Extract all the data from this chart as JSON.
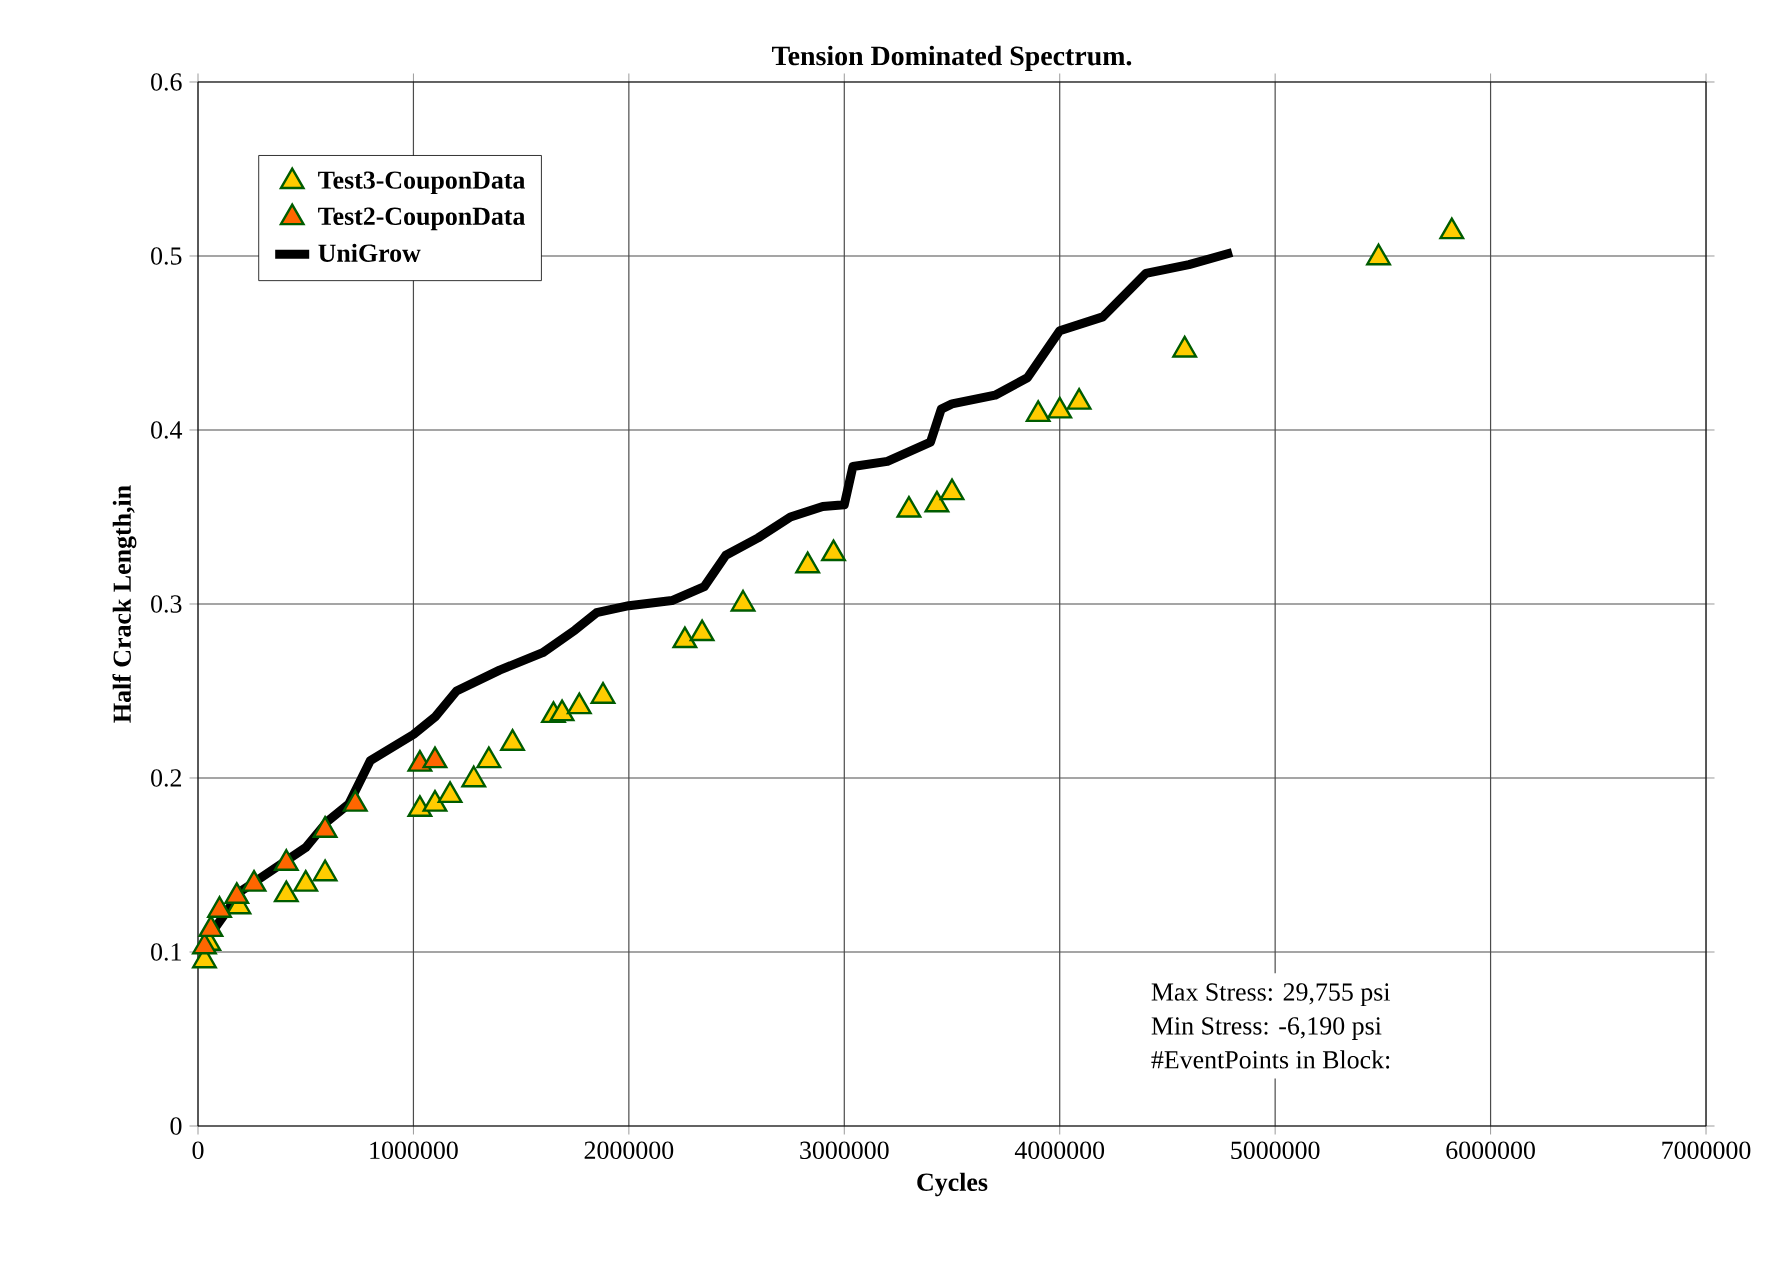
{
  "chart_data": {
    "type": "scatter",
    "title": "Tension Dominated Spectrum.",
    "xlabel": "Cycles",
    "ylabel": "Half Crack Length,in",
    "xlim": [
      0,
      7000000
    ],
    "ylim": [
      0,
      0.6
    ],
    "xticks": [
      0,
      1000000,
      2000000,
      3000000,
      4000000,
      5000000,
      6000000,
      7000000
    ],
    "yticks": [
      0,
      0.1,
      0.2,
      0.3,
      0.4,
      0.5,
      0.6
    ],
    "grid": true,
    "legend": "top left",
    "marker": "triangle",
    "annotations": [
      "Max Stress:  29,755 psi",
      "Min Stress:    -6,190  psi",
      "#EventPoints in Block:"
    ],
    "series": [
      {
        "name": "Test3-CouponData",
        "color": "#ffcc00",
        "x": [
          30000,
          50000,
          190000,
          410000,
          500000,
          590000,
          1030000,
          1100000,
          1170000,
          1280000,
          1350000,
          1460000,
          1650000,
          1690000,
          1770000,
          1880000,
          2260000,
          2340000,
          2530000,
          2830000,
          2950000,
          3300000,
          3430000,
          3500000,
          3900000,
          4000000,
          4090000,
          4580000,
          5480000,
          5820000
        ],
        "values": [
          0.095,
          0.105,
          0.126,
          0.133,
          0.139,
          0.145,
          0.182,
          0.185,
          0.19,
          0.199,
          0.21,
          0.22,
          0.236,
          0.237,
          0.241,
          0.247,
          0.279,
          0.283,
          0.3,
          0.322,
          0.329,
          0.354,
          0.357,
          0.364,
          0.409,
          0.411,
          0.416,
          0.446,
          0.499,
          0.514
        ]
      },
      {
        "name": "Test2-CouponData",
        "color": "#ff6600",
        "x": [
          30000,
          60000,
          100000,
          180000,
          260000,
          410000,
          590000,
          730000,
          1030000,
          1100000
        ],
        "values": [
          0.103,
          0.113,
          0.124,
          0.132,
          0.139,
          0.151,
          0.17,
          0.185,
          0.208,
          0.21
        ]
      },
      {
        "name": "UniGrow",
        "type": "line",
        "color": "#000000",
        "marker": "none",
        "x": [
          0,
          200000,
          500000,
          600000,
          700000,
          800000,
          1000000,
          1100000,
          1200000,
          1400000,
          1600000,
          1750000,
          1850000,
          2000000,
          2200000,
          2350000,
          2450000,
          2600000,
          2750000,
          2900000,
          3000000,
          3040000,
          3200000,
          3400000,
          3450000,
          3500000,
          3700000,
          3850000,
          4000000,
          4200000,
          4400000,
          4600000,
          4800000
        ],
        "values": [
          0.1,
          0.135,
          0.16,
          0.175,
          0.185,
          0.21,
          0.225,
          0.235,
          0.25,
          0.262,
          0.272,
          0.285,
          0.295,
          0.299,
          0.302,
          0.31,
          0.328,
          0.338,
          0.35,
          0.356,
          0.357,
          0.379,
          0.382,
          0.393,
          0.412,
          0.415,
          0.42,
          0.43,
          0.457,
          0.465,
          0.49,
          0.495,
          0.502
        ]
      }
    ]
  }
}
